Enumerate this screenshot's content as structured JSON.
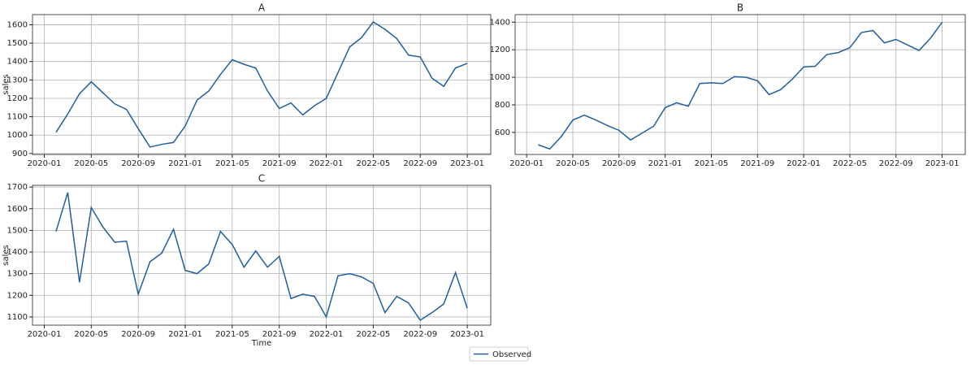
{
  "chart_data": [
    {
      "type": "line",
      "title": "A",
      "ylabel": "sales",
      "x": [
        "2020-02",
        "2020-03",
        "2020-04",
        "2020-05",
        "2020-06",
        "2020-07",
        "2020-08",
        "2020-09",
        "2020-10",
        "2020-11",
        "2020-12",
        "2021-01",
        "2021-02",
        "2021-03",
        "2021-04",
        "2021-05",
        "2021-06",
        "2021-07",
        "2021-08",
        "2021-09",
        "2021-10",
        "2021-11",
        "2021-12",
        "2022-01",
        "2022-02",
        "2022-03",
        "2022-04",
        "2022-05",
        "2022-06",
        "2022-07",
        "2022-08",
        "2022-09",
        "2022-10",
        "2022-11",
        "2022-12",
        "2023-01"
      ],
      "series": [
        {
          "name": "Observed",
          "color": "#1f5f9e",
          "values": [
            1015,
            1115,
            1225,
            1290,
            1230,
            1170,
            1140,
            1035,
            935,
            950,
            960,
            1050,
            1190,
            1240,
            1330,
            1410,
            1385,
            1365,
            1240,
            1145,
            1175,
            1110,
            1160,
            1200,
            1340,
            1480,
            1530,
            1615,
            1575,
            1525,
            1435,
            1425,
            1310,
            1265,
            1365,
            1390
          ]
        }
      ],
      "xlim": [
        "2019-12",
        "2023-03"
      ],
      "xticks": [
        "2020-01",
        "2020-05",
        "2020-09",
        "2021-01",
        "2021-05",
        "2021-09",
        "2022-01",
        "2022-05",
        "2022-09",
        "2023-01"
      ],
      "ylim": [
        895,
        1655
      ],
      "yticks": [
        900,
        1000,
        1100,
        1200,
        1300,
        1400,
        1500,
        1600
      ],
      "grid": true
    },
    {
      "type": "line",
      "title": "B",
      "x": [
        "2020-02",
        "2020-03",
        "2020-04",
        "2020-05",
        "2020-06",
        "2020-07",
        "2020-08",
        "2020-09",
        "2020-10",
        "2020-11",
        "2020-12",
        "2021-01",
        "2021-02",
        "2021-03",
        "2021-04",
        "2021-05",
        "2021-06",
        "2021-07",
        "2021-08",
        "2021-09",
        "2021-10",
        "2021-11",
        "2021-12",
        "2022-01",
        "2022-02",
        "2022-03",
        "2022-04",
        "2022-05",
        "2022-06",
        "2022-07",
        "2022-08",
        "2022-09",
        "2022-10",
        "2022-11",
        "2022-12",
        "2023-01"
      ],
      "series": [
        {
          "name": "Observed",
          "color": "#1f5f9e",
          "values": [
            510,
            480,
            570,
            690,
            725,
            690,
            650,
            615,
            545,
            595,
            645,
            780,
            815,
            790,
            955,
            960,
            955,
            1005,
            1000,
            975,
            875,
            910,
            985,
            1075,
            1080,
            1165,
            1180,
            1215,
            1325,
            1340,
            1250,
            1275,
            1235,
            1195,
            1285,
            1400
          ]
        }
      ],
      "xlim": [
        "2019-12",
        "2023-03"
      ],
      "xticks": [
        "2020-01",
        "2020-05",
        "2020-09",
        "2021-01",
        "2021-05",
        "2021-09",
        "2022-01",
        "2022-05",
        "2022-09",
        "2023-01"
      ],
      "ylim": [
        440,
        1455
      ],
      "yticks": [
        600,
        800,
        1000,
        1200,
        1400
      ],
      "grid": true
    },
    {
      "type": "line",
      "title": "C",
      "ylabel": "sales",
      "xlabel": "Time",
      "x": [
        "2020-02",
        "2020-03",
        "2020-04",
        "2020-05",
        "2020-06",
        "2020-07",
        "2020-08",
        "2020-09",
        "2020-10",
        "2020-11",
        "2020-12",
        "2021-01",
        "2021-02",
        "2021-03",
        "2021-04",
        "2021-05",
        "2021-06",
        "2021-07",
        "2021-08",
        "2021-09",
        "2021-10",
        "2021-11",
        "2021-12",
        "2022-01",
        "2022-02",
        "2022-03",
        "2022-04",
        "2022-05",
        "2022-06",
        "2022-07",
        "2022-08",
        "2022-09",
        "2022-10",
        "2022-11",
        "2022-12",
        "2023-01"
      ],
      "series": [
        {
          "name": "Observed",
          "color": "#1f5f9e",
          "values": [
            1495,
            1675,
            1260,
            1605,
            1515,
            1445,
            1450,
            1205,
            1355,
            1395,
            1505,
            1315,
            1300,
            1345,
            1495,
            1435,
            1330,
            1405,
            1330,
            1380,
            1185,
            1205,
            1195,
            1100,
            1290,
            1300,
            1285,
            1255,
            1120,
            1195,
            1165,
            1085,
            1120,
            1160,
            1305,
            1140
          ]
        }
      ],
      "xlim": [
        "2019-12",
        "2023-03"
      ],
      "xticks": [
        "2020-01",
        "2020-05",
        "2020-09",
        "2021-01",
        "2021-05",
        "2021-09",
        "2022-01",
        "2022-05",
        "2022-09",
        "2023-01"
      ],
      "ylim": [
        1062,
        1708
      ],
      "yticks": [
        1100,
        1200,
        1300,
        1400,
        1500,
        1600,
        1700
      ],
      "grid": true
    }
  ]
}
